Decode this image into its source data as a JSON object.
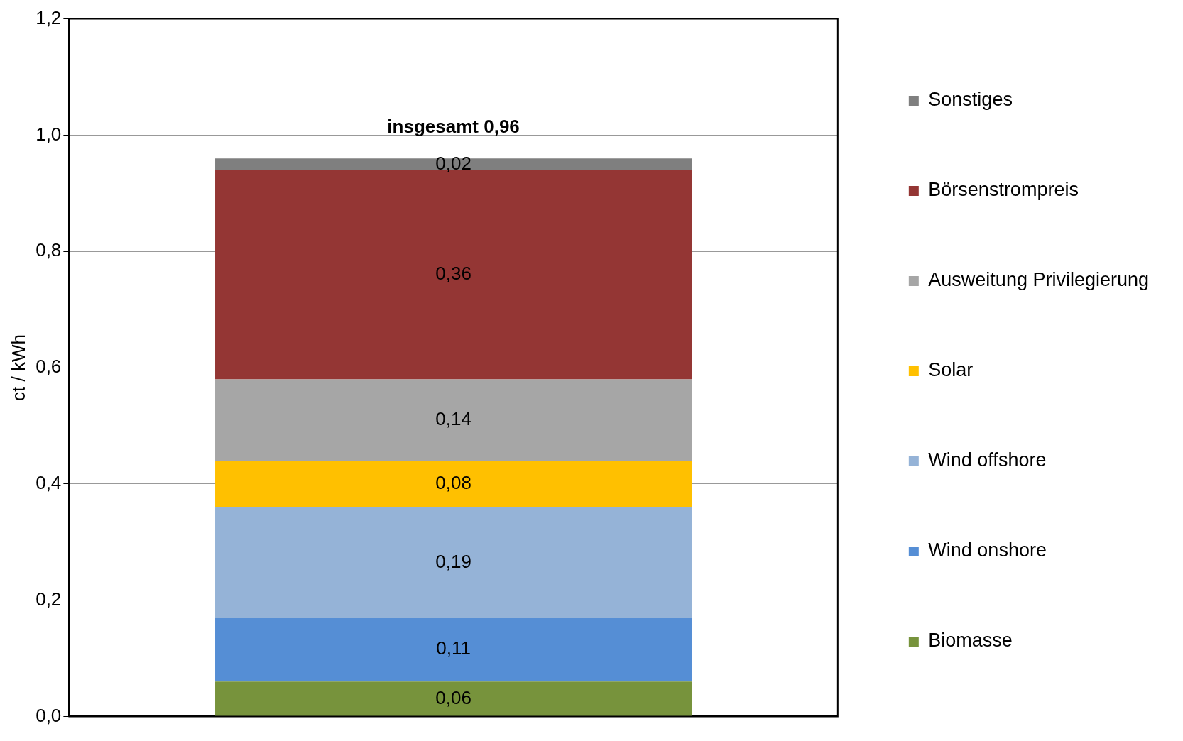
{
  "chart_data": {
    "type": "bar",
    "stacked": true,
    "ylabel": "ct / kWh",
    "categories": [
      null
    ],
    "series": [
      {
        "name": "Biomasse",
        "color": "#77933c",
        "values": [
          0.06
        ],
        "value_labels": [
          "0,06"
        ]
      },
      {
        "name": "Wind onshore",
        "color": "#558ed5",
        "values": [
          0.11
        ],
        "value_labels": [
          "0,11"
        ]
      },
      {
        "name": "Wind offshore",
        "color": "#95b3d7",
        "values": [
          0.19
        ],
        "value_labels": [
          "0,19"
        ]
      },
      {
        "name": "Solar",
        "color": "#ffc000",
        "values": [
          0.08
        ],
        "value_labels": [
          "0,08"
        ]
      },
      {
        "name": "Ausweitung Privilegierung",
        "color": "#a6a6a6",
        "values": [
          0.14
        ],
        "value_labels": [
          "0,14"
        ]
      },
      {
        "name": "Börsenstrompreis",
        "color": "#943634",
        "values": [
          0.36
        ],
        "value_labels": [
          "0,36"
        ]
      },
      {
        "name": "Sonstiges",
        "color": "#7f7f7f",
        "values": [
          0.02
        ],
        "value_labels": [
          "0,02"
        ]
      }
    ],
    "totals": [
      "insgesamt 0,96"
    ],
    "ylim": [
      0,
      1.2
    ],
    "yticks": [
      {
        "value": 0,
        "label": "0,0"
      },
      {
        "value": 0.2,
        "label": "0,2"
      },
      {
        "value": 0.4,
        "label": "0,4"
      },
      {
        "value": 0.6,
        "label": "0,6"
      },
      {
        "value": 0.8,
        "label": "0,8"
      },
      {
        "value": 1,
        "label": "1,0"
      },
      {
        "value": 1.2,
        "label": "1,2"
      }
    ],
    "grid": "y",
    "legend": "right"
  }
}
